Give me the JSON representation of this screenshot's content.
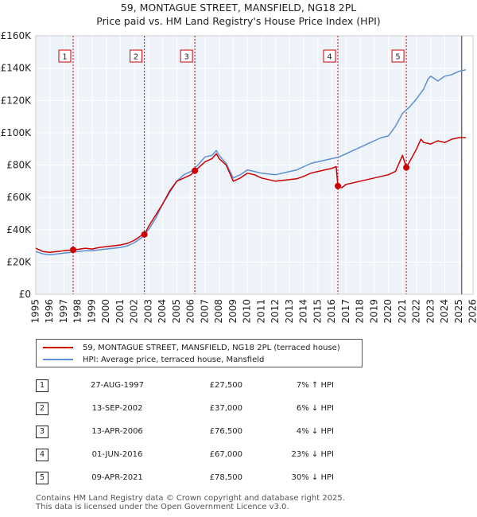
{
  "header": {
    "title_line1": "59, MONTAGUE STREET, MANSFIELD, NG18 2PL",
    "title_line2": "Price paid vs. HM Land Registry's House Price Index (HPI)"
  },
  "colors": {
    "property": "#cc0000",
    "hpi": "#5b8fd4",
    "marker": "#cc0000",
    "vline": "#cc0000"
  },
  "chart_data": {
    "type": "line",
    "title": "Price paid vs. HM Land Registry's House Price Index (HPI)",
    "xlabel": "",
    "ylabel": "",
    "xlim": [
      1995,
      2026
    ],
    "ylim": [
      0,
      160000
    ],
    "y_ticks": [
      0,
      20000,
      40000,
      60000,
      80000,
      100000,
      120000,
      140000,
      160000
    ],
    "y_tick_labels": [
      "£0",
      "£20K",
      "£40K",
      "£60K",
      "£80K",
      "£100K",
      "£120K",
      "£140K",
      "£160K"
    ],
    "x_ticks": [
      1995,
      1996,
      1997,
      1998,
      1999,
      2000,
      2001,
      2002,
      2003,
      2004,
      2005,
      2006,
      2007,
      2008,
      2009,
      2010,
      2011,
      2012,
      2013,
      2014,
      2015,
      2016,
      2017,
      2018,
      2019,
      2020,
      2021,
      2022,
      2023,
      2024,
      2025,
      2026
    ],
    "x_tick_labels": [
      "1995",
      "1996",
      "1997",
      "1998",
      "1999",
      "2000",
      "2001",
      "2002",
      "2003",
      "2004",
      "2005",
      "2006",
      "2007",
      "2008",
      "2009",
      "2010",
      "2011",
      "2012",
      "2013",
      "2014",
      "2015",
      "2016",
      "2017",
      "2018",
      "2019",
      "2020",
      "2021",
      "2022",
      "2023",
      "2024",
      "2025",
      "2026"
    ],
    "forecast_start": 2025.2,
    "series": [
      {
        "name": "59, MONTAGUE STREET, MANSFIELD, NG18 2PL (terraced house)",
        "color": "#cc0000",
        "x": [
          1995.0,
          1995.5,
          1996.0,
          1996.5,
          1997.0,
          1997.65,
          1998.0,
          1998.5,
          1999.0,
          1999.5,
          2000.0,
          2000.5,
          2001.0,
          2001.5,
          2002.0,
          2002.5,
          2002.7,
          2003.0,
          2003.5,
          2004.0,
          2004.5,
          2005.0,
          2005.5,
          2006.0,
          2006.28,
          2006.5,
          2007.0,
          2007.5,
          2007.8,
          2008.0,
          2008.5,
          2009.0,
          2009.5,
          2010.0,
          2010.5,
          2011.0,
          2011.5,
          2012.0,
          2012.5,
          2013.0,
          2013.5,
          2014.0,
          2014.5,
          2015.0,
          2015.5,
          2016.0,
          2016.3,
          2016.42,
          2016.7,
          2017.0,
          2017.5,
          2018.0,
          2018.5,
          2019.0,
          2019.5,
          2020.0,
          2020.5,
          2021.0,
          2021.27,
          2021.5,
          2022.0,
          2022.3,
          2022.5,
          2023.0,
          2023.5,
          2024.0,
          2024.5,
          2025.0,
          2025.5
        ],
        "values": [
          28500,
          26500,
          26000,
          26500,
          27000,
          27500,
          27800,
          28500,
          28000,
          29000,
          29500,
          30000,
          30500,
          31500,
          33500,
          36500,
          37000,
          42000,
          49000,
          56000,
          64000,
          70000,
          72000,
          74000,
          76500,
          78000,
          82000,
          84000,
          87000,
          84000,
          80000,
          70000,
          72000,
          75000,
          74000,
          72000,
          71000,
          70000,
          70500,
          71000,
          71500,
          73000,
          75000,
          76000,
          77000,
          78000,
          79000,
          67000,
          66000,
          68000,
          69000,
          70000,
          71000,
          72000,
          73000,
          74000,
          76000,
          86000,
          78500,
          82000,
          90000,
          96000,
          94000,
          93000,
          95000,
          94000,
          96000,
          97000,
          97000
        ]
      },
      {
        "name": "HPI: Average price, terraced house, Mansfield",
        "color": "#5b8fd4",
        "x": [
          1995.0,
          1995.5,
          1996.0,
          1996.5,
          1997.0,
          1997.5,
          1998.0,
          1998.5,
          1999.0,
          1999.5,
          2000.0,
          2000.5,
          2001.0,
          2001.5,
          2002.0,
          2002.5,
          2003.0,
          2003.5,
          2004.0,
          2004.5,
          2005.0,
          2005.5,
          2006.0,
          2006.5,
          2007.0,
          2007.5,
          2007.8,
          2008.0,
          2008.5,
          2009.0,
          2009.5,
          2010.0,
          2010.5,
          2011.0,
          2011.5,
          2012.0,
          2012.5,
          2013.0,
          2013.5,
          2014.0,
          2014.5,
          2015.0,
          2015.5,
          2016.0,
          2016.5,
          2017.0,
          2017.5,
          2018.0,
          2018.5,
          2019.0,
          2019.5,
          2020.0,
          2020.5,
          2021.0,
          2021.5,
          2022.0,
          2022.5,
          2022.8,
          2023.0,
          2023.5,
          2024.0,
          2024.5,
          2025.0,
          2025.5
        ],
        "values": [
          26500,
          25000,
          24500,
          25000,
          25500,
          26000,
          26500,
          27000,
          27000,
          27500,
          28000,
          28500,
          29000,
          30000,
          32000,
          35000,
          40000,
          47000,
          56000,
          63000,
          70000,
          74000,
          76000,
          80000,
          85000,
          86000,
          89000,
          86000,
          81000,
          72000,
          74000,
          77000,
          76000,
          75000,
          74500,
          74000,
          75000,
          76000,
          77000,
          79000,
          81000,
          82000,
          83000,
          84000,
          85000,
          87000,
          89000,
          91000,
          93000,
          95000,
          97000,
          98000,
          104000,
          112000,
          116000,
          121000,
          127000,
          133000,
          135000,
          132000,
          135000,
          136000,
          138000,
          139000
        ]
      }
    ],
    "sales": [
      {
        "id": "1",
        "date": "27-AUG-1997",
        "price": "£27,500",
        "delta": "7% ↑ HPI",
        "x": 1997.65,
        "value": 27500
      },
      {
        "id": "2",
        "date": "13-SEP-2002",
        "price": "£37,000",
        "delta": "6% ↓ HPI",
        "x": 2002.7,
        "value": 37000
      },
      {
        "id": "3",
        "date": "13-APR-2006",
        "price": "£76,500",
        "delta": "4% ↓ HPI",
        "x": 2006.28,
        "value": 76500
      },
      {
        "id": "4",
        "date": "01-JUN-2016",
        "price": "£67,000",
        "delta": "23% ↓ HPI",
        "x": 2016.42,
        "value": 67000
      },
      {
        "id": "5",
        "date": "09-APR-2021",
        "price": "£78,500",
        "delta": "30% ↓ HPI",
        "x": 2021.27,
        "value": 78500
      }
    ]
  },
  "legend": {
    "property_label": "59, MONTAGUE STREET, MANSFIELD, NG18 2PL (terraced house)",
    "hpi_label": "HPI: Average price, terraced house, Mansfield"
  },
  "footer": {
    "line1": "Contains HM Land Registry data © Crown copyright and database right 2025.",
    "line2": "This data is licensed under the Open Government Licence v3.0."
  }
}
